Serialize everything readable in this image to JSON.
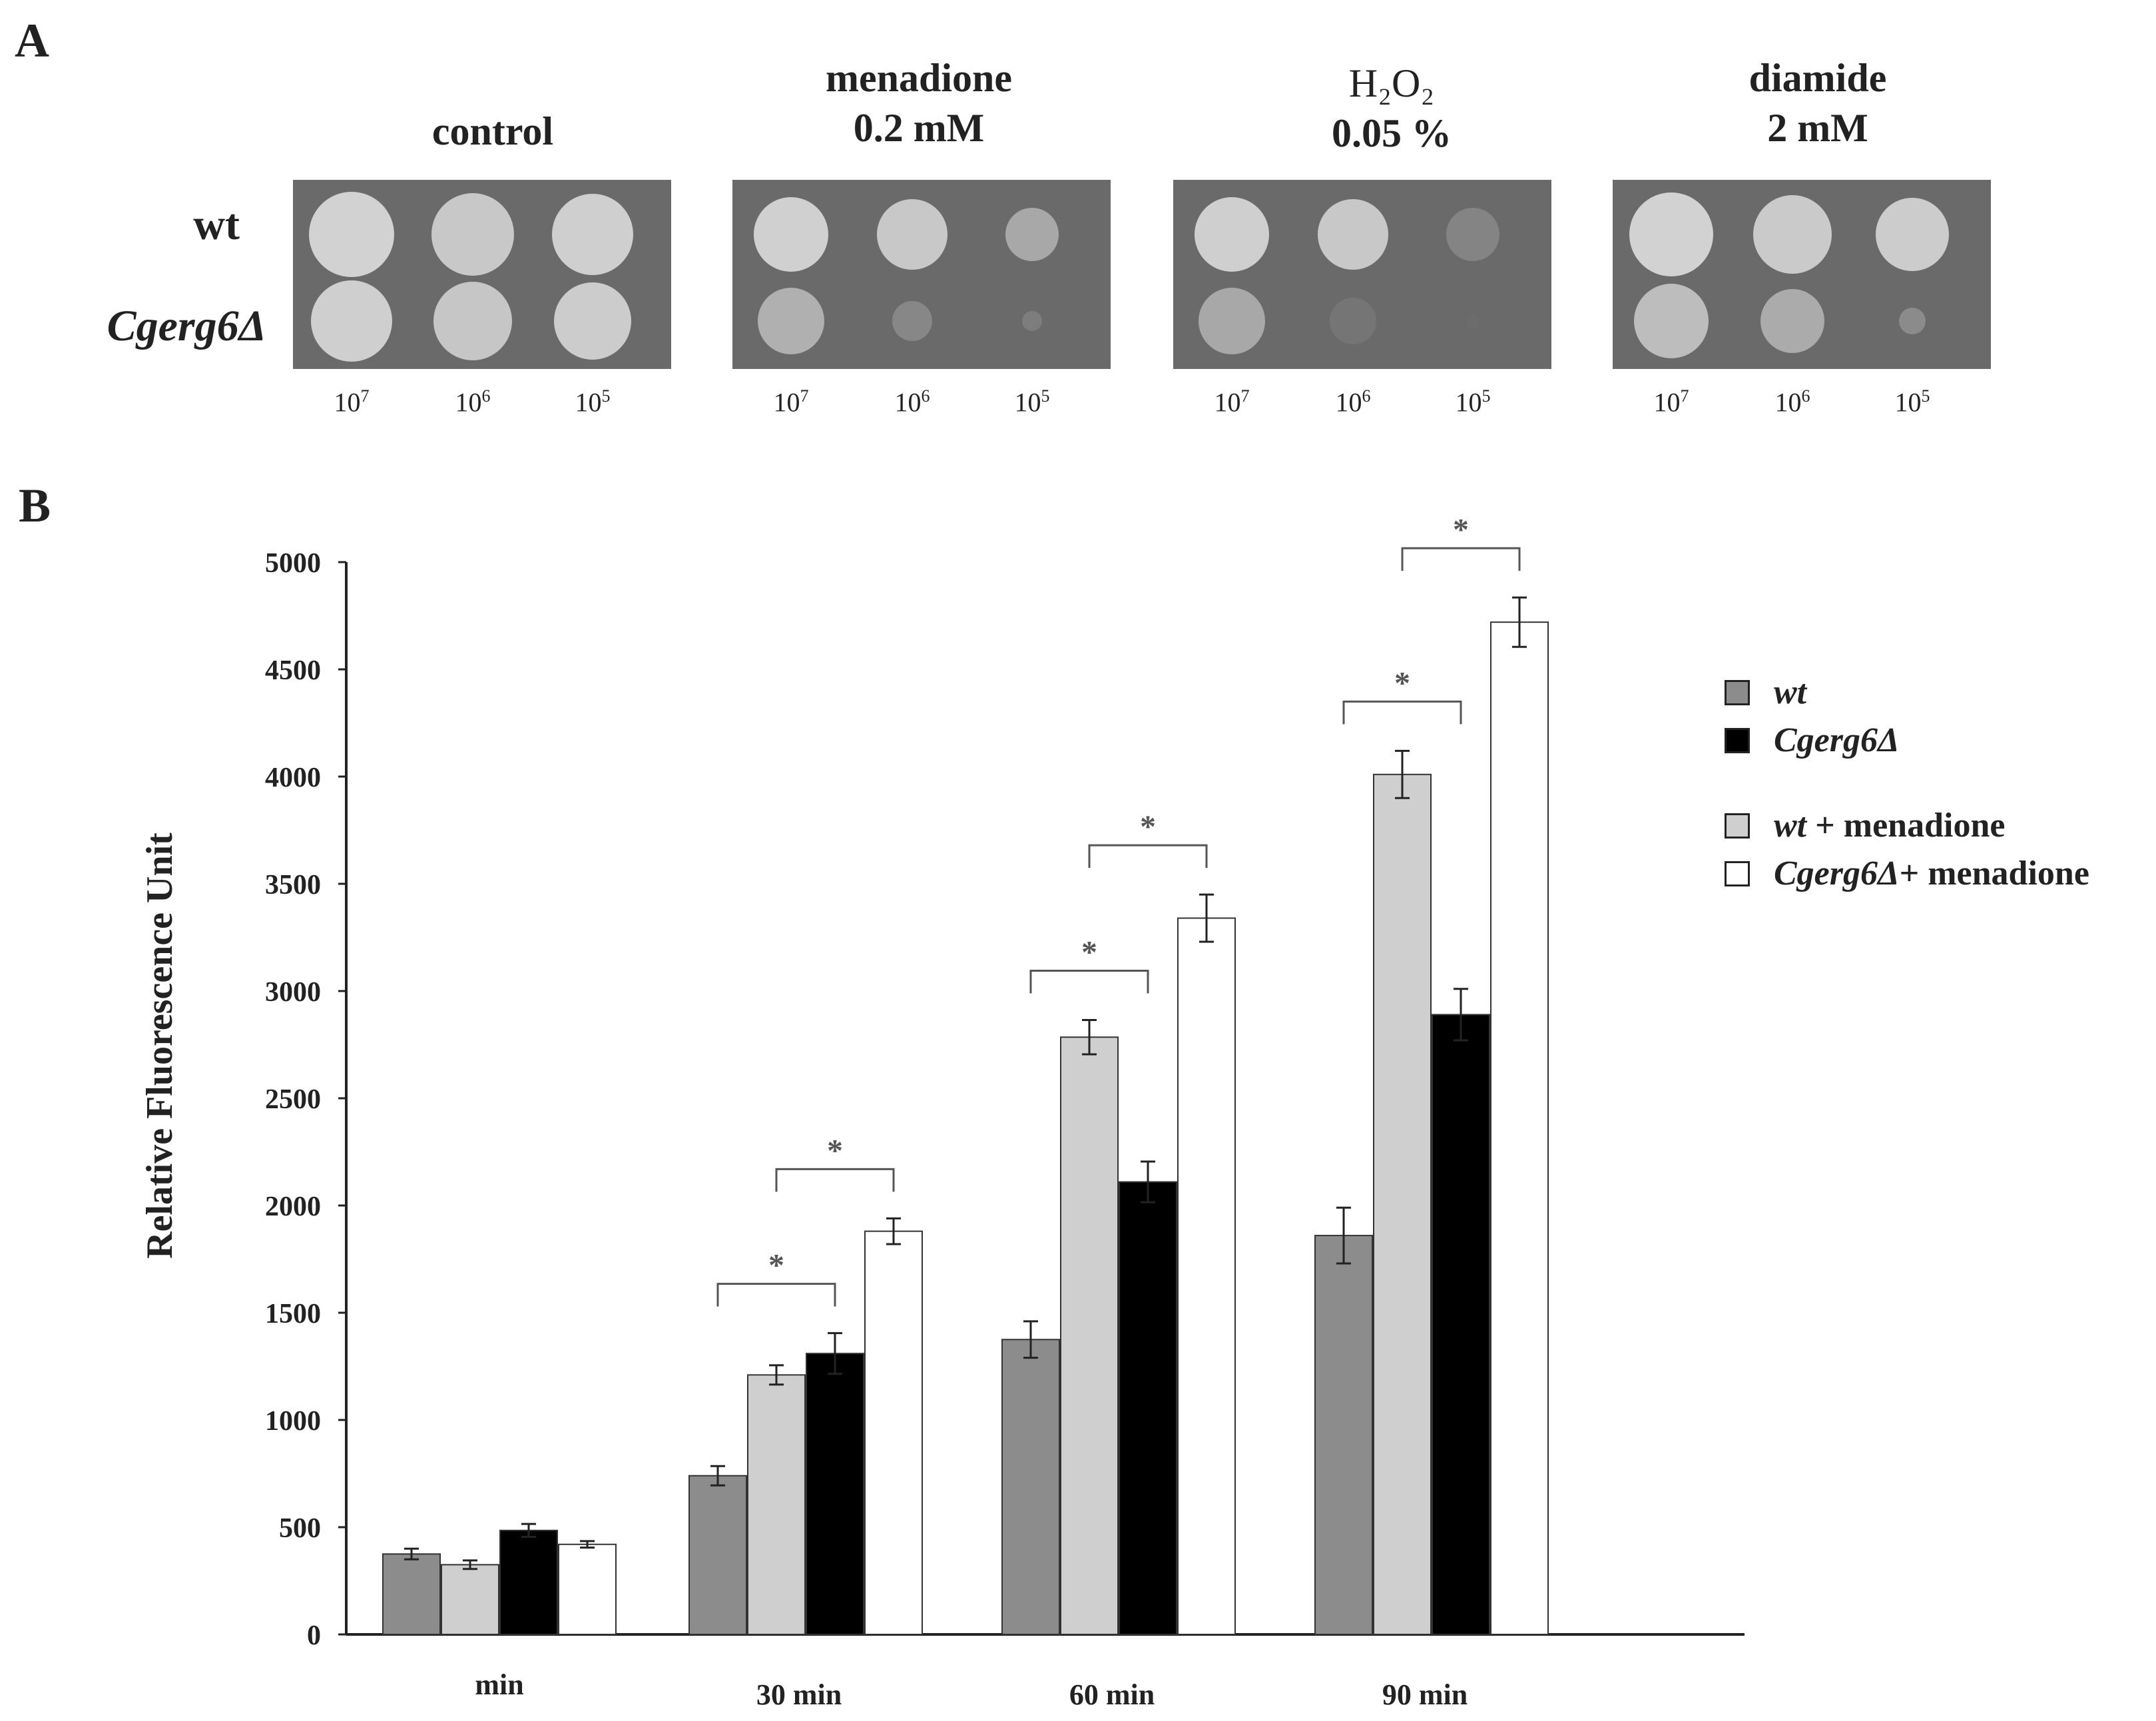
{
  "panel_a": {
    "letter": "A",
    "conditions": [
      {
        "title_lines": [
          "control"
        ]
      },
      {
        "title_lines": [
          "menadione",
          "0.2 mM"
        ]
      },
      {
        "title_lines": [
          "H₂O₂",
          "0.05 %"
        ]
      },
      {
        "title_lines": [
          "diamide",
          "2 mM"
        ]
      }
    ],
    "strains": [
      "wt",
      "Cgerg6Δ"
    ],
    "dilutions": [
      "10",
      "10",
      "10"
    ],
    "dilution_exponents": [
      "7",
      "6",
      "5"
    ]
  },
  "panel_b": {
    "letter": "B"
  },
  "chart_data": {
    "type": "bar",
    "title": "",
    "xlabel": "",
    "ylabel": "Relative Fluorescence Unit",
    "ylim": [
      0,
      5000
    ],
    "yticks": [
      "0",
      "500",
      "1000",
      "1500",
      "2000",
      "2500",
      "3000",
      "3500",
      "4000",
      "4500",
      "5000"
    ],
    "categories": [
      "min",
      "30 min",
      "60 min",
      "90 min"
    ],
    "series": [
      {
        "name": "wt",
        "legend_italic": "wt",
        "legend_rest": "",
        "color": "#8c8c8c",
        "values": [
          375,
          740,
          1375,
          1860
        ],
        "errors": [
          25,
          45,
          85,
          130
        ]
      },
      {
        "name": "wt + menadione",
        "legend_italic": "wt",
        "legend_rest": " + menadione",
        "color": "#cfcfcf",
        "values": [
          325,
          1210,
          2785,
          4010
        ],
        "errors": [
          20,
          45,
          80,
          110
        ]
      },
      {
        "name": "Cgerg6Δ",
        "legend_italic": "Cgerg6Δ",
        "legend_rest": "",
        "color": "#000000",
        "values": [
          485,
          1310,
          2110,
          2890
        ],
        "errors": [
          30,
          95,
          95,
          120
        ]
      },
      {
        "name": "Cgerg6Δ+ menadione",
        "legend_italic": "Cgerg6Δ",
        "legend_rest": "+ menadione",
        "color": "#ffffff",
        "values": [
          420,
          1880,
          3340,
          4720
        ],
        "errors": [
          15,
          60,
          110,
          115
        ]
      }
    ],
    "legend_order": [
      0,
      2,
      1,
      3
    ],
    "significance": [
      {
        "category": 1,
        "from_series": 0,
        "to_series": 2,
        "label": "*"
      },
      {
        "category": 1,
        "from_series": 1,
        "to_series": 3,
        "label": "*"
      },
      {
        "category": 2,
        "from_series": 0,
        "to_series": 2,
        "label": "*"
      },
      {
        "category": 2,
        "from_series": 1,
        "to_series": 3,
        "label": "*"
      },
      {
        "category": 3,
        "from_series": 0,
        "to_series": 2,
        "label": "*"
      },
      {
        "category": 3,
        "from_series": 1,
        "to_series": 3,
        "label": "*"
      }
    ]
  }
}
